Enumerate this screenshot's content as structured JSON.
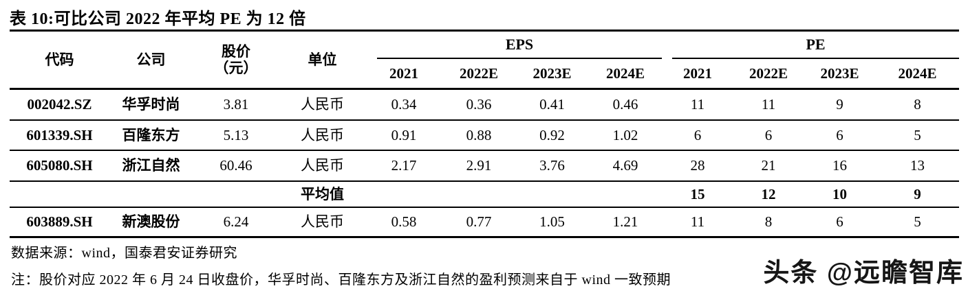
{
  "title": "表 10:可比公司 2022 年平均 PE 为 12 倍",
  "table": {
    "headers": {
      "code": "代码",
      "company": "公司",
      "price_line1": "股价",
      "price_line2": "（元）",
      "unit": "单位",
      "eps_group": "EPS",
      "pe_group": "PE"
    },
    "eps_years": [
      "2021",
      "2022E",
      "2023E",
      "2024E"
    ],
    "pe_years": [
      "2021",
      "2022E",
      "2023E",
      "2024E"
    ],
    "rows": [
      {
        "code": "002042.SZ",
        "company": "华孚时尚",
        "price": "3.81",
        "unit": "人民币",
        "eps": [
          "0.34",
          "0.36",
          "0.41",
          "0.46"
        ],
        "pe": [
          "11",
          "11",
          "9",
          "8"
        ]
      },
      {
        "code": "601339.SH",
        "company": "百隆东方",
        "price": "5.13",
        "unit": "人民币",
        "eps": [
          "0.91",
          "0.88",
          "0.92",
          "1.02"
        ],
        "pe": [
          "6",
          "6",
          "6",
          "5"
        ]
      },
      {
        "code": "605080.SH",
        "company": "浙江自然",
        "price": "60.46",
        "unit": "人民币",
        "eps": [
          "2.17",
          "2.91",
          "3.76",
          "4.69"
        ],
        "pe": [
          "28",
          "21",
          "16",
          "13"
        ]
      }
    ],
    "average_row": {
      "label": "平均值",
      "pe": [
        "15",
        "12",
        "10",
        "9"
      ]
    },
    "last_row": {
      "code": "603889.SH",
      "company": "新澳股份",
      "price": "6.24",
      "unit": "人民币",
      "eps": [
        "0.58",
        "0.77",
        "1.05",
        "1.21"
      ],
      "pe": [
        "11",
        "8",
        "6",
        "5"
      ]
    }
  },
  "footer": {
    "source": "数据来源：wind，国泰君安证券研究",
    "note": "注：股价对应 2022 年 6 月 24 日收盘价，华孚时尚、百隆东方及浙江自然的盈利预测来自于 wind 一致预期"
  },
  "watermark": "头条 @远瞻智库"
}
